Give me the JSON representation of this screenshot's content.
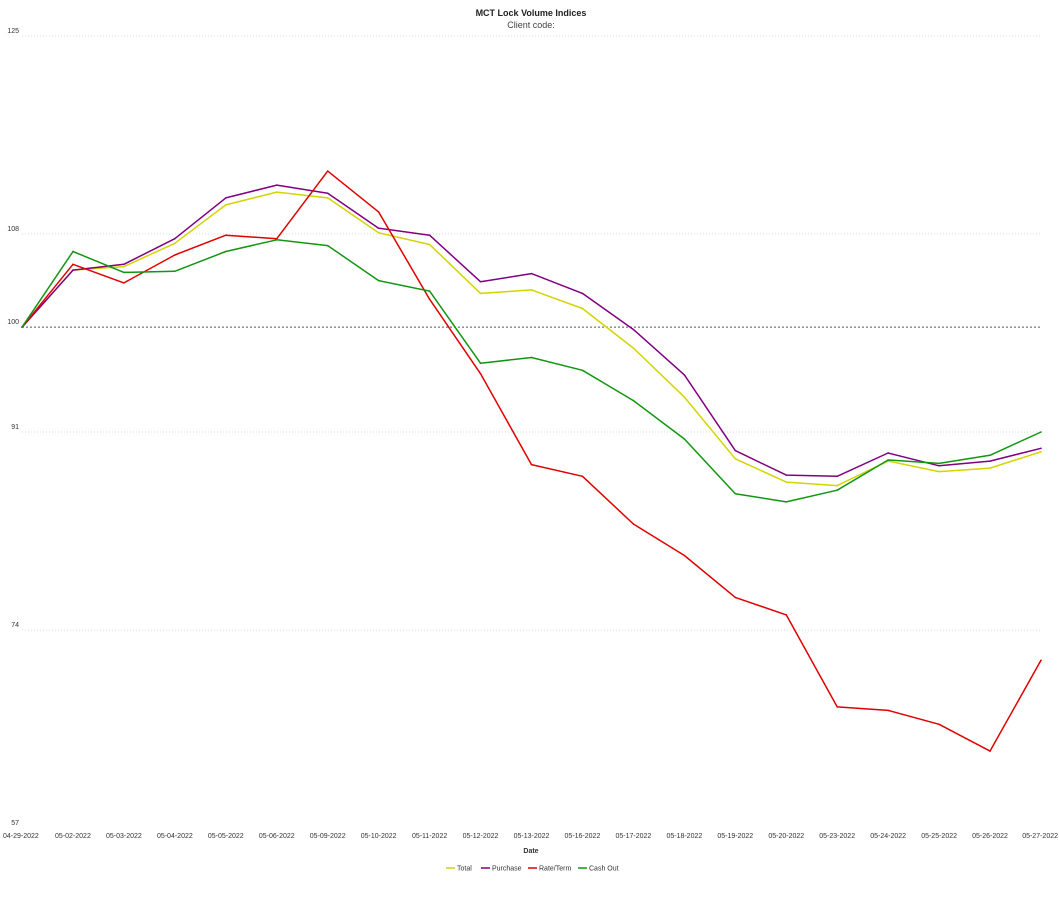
{
  "chart_data": {
    "type": "line",
    "title": "MCT Lock Volume Indices",
    "subtitle": "Client code:",
    "xlabel": "Date",
    "ylabel": "",
    "ylim": [
      57,
      125
    ],
    "yticks": [
      57,
      74,
      91,
      100,
      108,
      125
    ],
    "reference_line": 100,
    "grid": true,
    "legend_position": "bottom",
    "categories": [
      "04-29-2022",
      "05-02-2022",
      "05-03-2022",
      "05-04-2022",
      "05-05-2022",
      "05-06-2022",
      "05-09-2022",
      "05-10-2022",
      "05-11-2022",
      "05-12-2022",
      "05-13-2022",
      "05-16-2022",
      "05-17-2022",
      "05-18-2022",
      "05-19-2022",
      "05-20-2022",
      "05-23-2022",
      "05-24-2022",
      "05-25-2022",
      "05-26-2022",
      "05-27-2022"
    ],
    "series": [
      {
        "name": "Total",
        "color": "#d4d400",
        "values": [
          100,
          104.9,
          105.2,
          107.2,
          110.5,
          111.6,
          111.1,
          108.1,
          107.1,
          102.9,
          103.2,
          101.6,
          98.2,
          94.0,
          88.7,
          86.7,
          86.4,
          88.5,
          87.6,
          87.9,
          89.3
        ]
      },
      {
        "name": "Purchase",
        "color": "#800080",
        "values": [
          100,
          104.9,
          105.4,
          107.6,
          111.1,
          112.2,
          111.5,
          108.5,
          107.9,
          103.9,
          104.6,
          102.9,
          99.8,
          95.9,
          89.4,
          87.3,
          87.2,
          89.2,
          88.1,
          88.5,
          89.6
        ]
      },
      {
        "name": "Rate/Term",
        "color": "#e00000",
        "values": [
          100,
          105.4,
          103.8,
          106.2,
          107.9,
          107.6,
          113.4,
          109.9,
          102.4,
          96.0,
          88.2,
          87.2,
          83.1,
          80.4,
          76.8,
          75.3,
          67.4,
          67.1,
          65.9,
          63.6,
          71.4
        ]
      },
      {
        "name": "Cash Out",
        "color": "#129612",
        "values": [
          100,
          106.5,
          104.7,
          104.8,
          106.5,
          107.5,
          107.0,
          104.0,
          103.1,
          96.9,
          97.4,
          96.3,
          93.7,
          90.4,
          85.7,
          85.0,
          86.0,
          88.6,
          88.3,
          89.0,
          91.0
        ]
      }
    ]
  }
}
